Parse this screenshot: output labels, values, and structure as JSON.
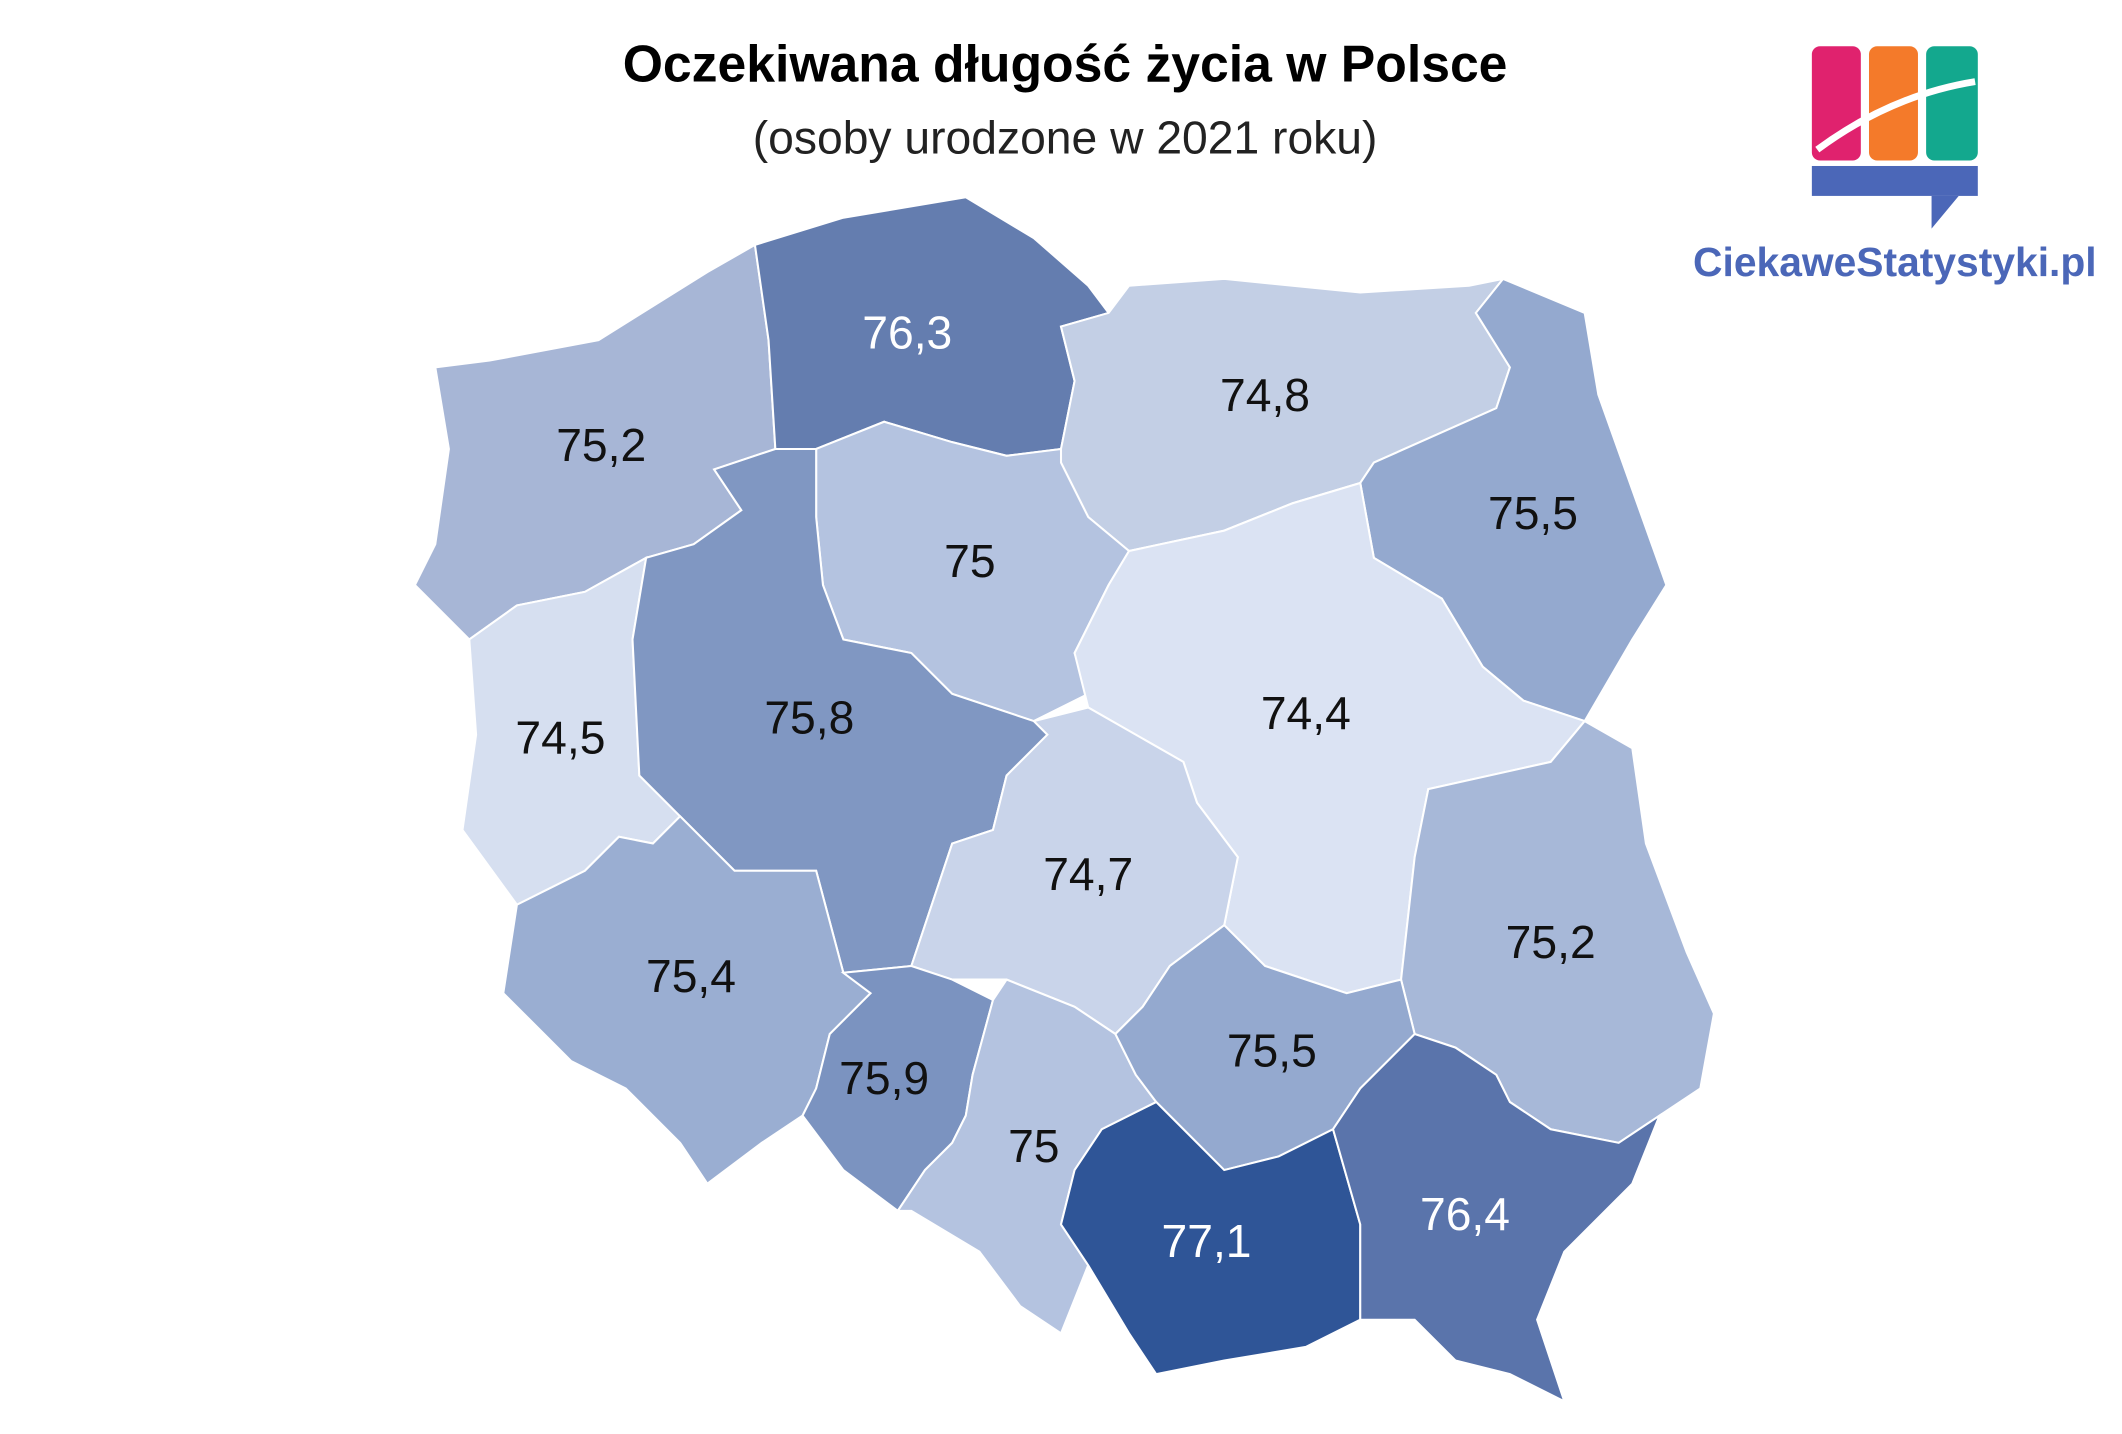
{
  "header": {
    "title": "Oczekiwana długość życia w Polsce",
    "subtitle": "(osoby urodzone w 2021 roku)",
    "brand": "CiekaweStatystyki.pl"
  },
  "map": {
    "values": [
      75.2,
      76.3,
      74.8,
      75.5,
      75,
      74.5,
      75.8,
      74.4,
      74.7,
      75.4,
      75.9,
      75.2,
      75,
      75.5,
      77.1,
      76.4
    ],
    "value_labels": [
      "75,2",
      "76,3",
      "74,8",
      "75,5",
      "75",
      "74,5",
      "75,8",
      "74,4",
      "74,7",
      "75,4",
      "75,9",
      "75,2",
      "75",
      "75,5",
      "77,1",
      "76,4"
    ],
    "colors": [
      "#a7b6d6",
      "#647daf",
      "#c3cfe5",
      "#94a9cf",
      "#b4c3e0",
      "#d6dff0",
      "#8097c2",
      "#dbe3f3",
      "#c9d4ea",
      "#9aaed2",
      "#7b93c0",
      "#a7b8d8",
      "#b4c3e0",
      "#94a9cf",
      "#2f5597",
      "#5a74ab"
    ]
  }
}
